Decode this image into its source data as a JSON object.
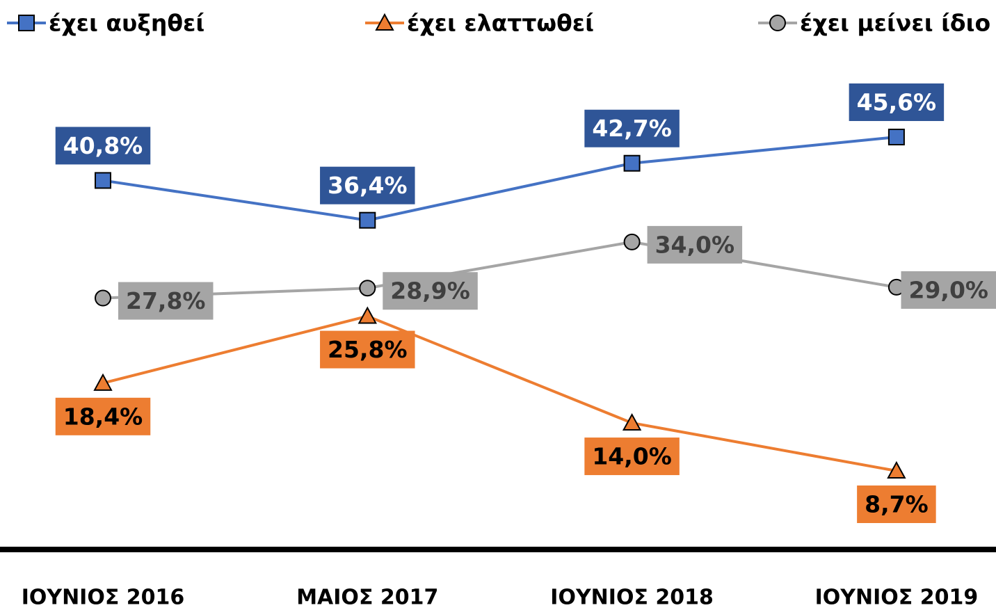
{
  "chart_data": {
    "type": "line",
    "categories": [
      "ΙΟΥΝΙΟΣ 2016",
      "ΜΑΙΟΣ 2017",
      "ΙΟΥΝΙΟΣ 2018",
      "ΙΟΥΝΙΟΣ 2019"
    ],
    "series": [
      {
        "name": "έχει αυξηθεί",
        "color": "#4472c4",
        "marker": "square",
        "values": [
          40.8,
          36.4,
          42.7,
          45.6
        ],
        "value_labels": [
          "40,8%",
          "36,4%",
          "42,7%",
          "45,6%"
        ]
      },
      {
        "name": "έχει ελαττωθεί",
        "color": "#ed7d31",
        "marker": "triangle",
        "values": [
          18.4,
          25.8,
          14.0,
          8.7
        ],
        "value_labels": [
          "18,4%",
          "25,8%",
          "14,0%",
          "8,7%"
        ]
      },
      {
        "name": "έχει μείνει ίδιο",
        "color": "#a5a5a5",
        "marker": "circle",
        "values": [
          27.8,
          28.9,
          34.0,
          29.0
        ],
        "value_labels": [
          "27,8%",
          "28,9%",
          "34,0%",
          "29,0%"
        ]
      }
    ],
    "legend": "top",
    "grid": false
  }
}
